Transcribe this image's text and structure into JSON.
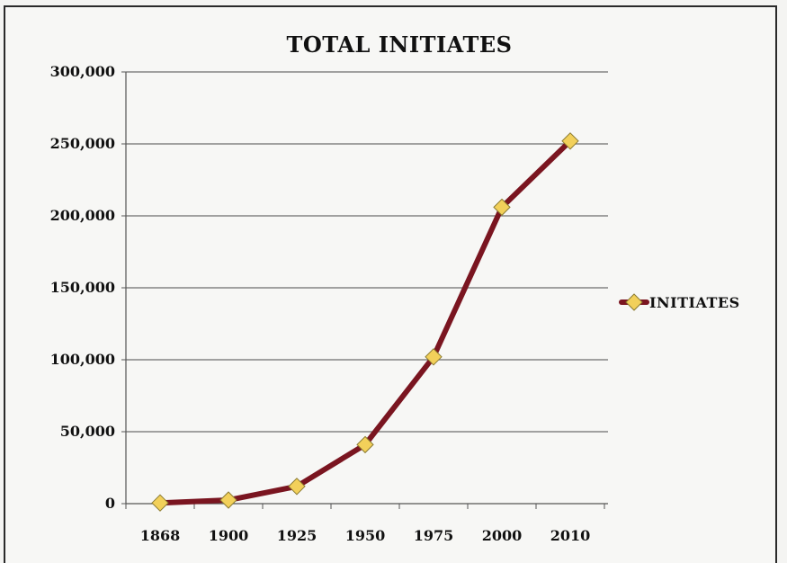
{
  "chart_data": {
    "type": "line",
    "title": "TOTAL INITIATES",
    "xlabel": "",
    "ylabel": "",
    "categories": [
      "1868",
      "1900",
      "1925",
      "1950",
      "1975",
      "2000",
      "2010"
    ],
    "y_ticks": [
      "0",
      "50,000",
      "100,000",
      "150,000",
      "200,000",
      "250,000",
      "300,000"
    ],
    "ylim": [
      0,
      300000
    ],
    "grid": true,
    "legend_position": "right",
    "series": [
      {
        "name": "INITIATES",
        "values": [
          500,
          2500,
          12000,
          41000,
          102000,
          206000,
          252000
        ],
        "line_color": "#7a1520",
        "marker_color": "#f2d05a",
        "marker": "diamond"
      }
    ]
  }
}
